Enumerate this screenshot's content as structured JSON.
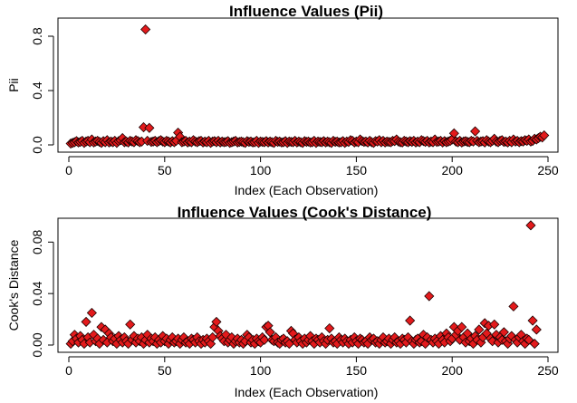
{
  "chart_data": [
    {
      "type": "scatter",
      "title": "Influence Values (Pii)",
      "xlabel": "Index (Each Observation)",
      "ylabel": "Pii",
      "xlim": [
        0,
        250
      ],
      "ylim": [
        0,
        0.9
      ],
      "xticks": [
        "0",
        "50",
        "100",
        "150",
        "200",
        "250"
      ],
      "yticks": [
        "0.0",
        "0.4",
        "0.8"
      ],
      "marker": "diamond",
      "marker_color": "#e31a1c",
      "x_start": 1,
      "values": [
        0.01,
        0.015,
        0.02,
        0.028,
        0.018,
        0.022,
        0.03,
        0.015,
        0.025,
        0.03,
        0.02,
        0.04,
        0.018,
        0.025,
        0.03,
        0.022,
        0.015,
        0.028,
        0.02,
        0.035,
        0.018,
        0.025,
        0.02,
        0.03,
        0.015,
        0.028,
        0.035,
        0.05,
        0.02,
        0.025,
        0.018,
        0.03,
        0.025,
        0.02,
        0.035,
        0.028,
        0.02,
        0.025,
        0.13,
        0.85,
        0.03,
        0.125,
        0.022,
        0.025,
        0.03,
        0.02,
        0.028,
        0.035,
        0.025,
        0.02,
        0.03,
        0.025,
        0.018,
        0.028,
        0.02,
        0.03,
        0.09,
        0.06,
        0.02,
        0.025,
        0.03,
        0.018,
        0.025,
        0.02,
        0.035,
        0.025,
        0.02,
        0.028,
        0.03,
        0.018,
        0.025,
        0.02,
        0.03,
        0.015,
        0.025,
        0.028,
        0.02,
        0.03,
        0.018,
        0.025,
        0.02,
        0.022,
        0.028,
        0.015,
        0.02,
        0.025,
        0.03,
        0.018,
        0.022,
        0.025,
        0.02,
        0.015,
        0.028,
        0.022,
        0.025,
        0.018,
        0.02,
        0.03,
        0.015,
        0.025,
        0.022,
        0.02,
        0.028,
        0.018,
        0.025,
        0.02,
        0.015,
        0.03,
        0.022,
        0.025,
        0.018,
        0.02,
        0.028,
        0.015,
        0.025,
        0.022,
        0.02,
        0.03,
        0.018,
        0.025,
        0.02,
        0.015,
        0.028,
        0.022,
        0.025,
        0.018,
        0.02,
        0.03,
        0.015,
        0.025,
        0.022,
        0.02,
        0.028,
        0.018,
        0.025,
        0.02,
        0.015,
        0.03,
        0.022,
        0.025,
        0.018,
        0.02,
        0.028,
        0.015,
        0.025,
        0.022,
        0.035,
        0.03,
        0.018,
        0.025,
        0.02,
        0.04,
        0.028,
        0.022,
        0.025,
        0.018,
        0.03,
        0.02,
        0.015,
        0.028,
        0.025,
        0.035,
        0.02,
        0.03,
        0.018,
        0.025,
        0.022,
        0.02,
        0.03,
        0.028,
        0.04,
        0.025,
        0.02,
        0.018,
        0.03,
        0.025,
        0.02,
        0.028,
        0.022,
        0.03,
        0.018,
        0.025,
        0.02,
        0.035,
        0.028,
        0.022,
        0.03,
        0.018,
        0.025,
        0.02,
        0.04,
        0.022,
        0.025,
        0.03,
        0.018,
        0.028,
        0.02,
        0.025,
        0.03,
        0.04,
        0.085,
        0.025,
        0.02,
        0.03,
        0.018,
        0.025,
        0.028,
        0.022,
        0.02,
        0.03,
        0.025,
        0.1,
        0.03,
        0.02,
        0.025,
        0.028,
        0.018,
        0.035,
        0.025,
        0.02,
        0.03,
        0.045,
        0.025,
        0.02,
        0.03,
        0.035,
        0.022,
        0.025,
        0.018,
        0.03,
        0.02,
        0.04,
        0.025,
        0.03,
        0.02,
        0.028,
        0.025,
        0.035,
        0.03,
        0.04,
        0.025,
        0.03,
        0.045,
        0.04,
        0.05,
        0.06,
        0.055,
        0.07
      ]
    },
    {
      "type": "scatter",
      "title": "Influence Values (Cook's Distance)",
      "xlabel": "Index (Each Observation)",
      "ylabel": "Cook's Distance",
      "xlim": [
        0,
        250
      ],
      "ylim": [
        0,
        0.095
      ],
      "xticks": [
        "0",
        "50",
        "100",
        "150",
        "200",
        "250"
      ],
      "yticks": [
        "0.00",
        "0.04",
        "0.08"
      ],
      "marker": "diamond",
      "marker_color": "#e31a1c",
      "x_start": 1,
      "values": [
        0.001,
        0.003,
        0.008,
        0.005,
        0.002,
        0.007,
        0.004,
        0.001,
        0.018,
        0.006,
        0.002,
        0.025,
        0.008,
        0.003,
        0.005,
        0.001,
        0.014,
        0.004,
        0.012,
        0.002,
        0.009,
        0.006,
        0.003,
        0.005,
        0.001,
        0.007,
        0.004,
        0.002,
        0.006,
        0.003,
        0.001,
        0.016,
        0.004,
        0.007,
        0.002,
        0.005,
        0.003,
        0.006,
        0.001,
        0.004,
        0.008,
        0.002,
        0.005,
        0.003,
        0.006,
        0.001,
        0.004,
        0.002,
        0.007,
        0.003,
        0.005,
        0.001,
        0.004,
        0.006,
        0.002,
        0.003,
        0.005,
        0.001,
        0.004,
        0.006,
        0.002,
        0.003,
        0.001,
        0.005,
        0.004,
        0.002,
        0.006,
        0.003,
        0.001,
        0.004,
        0.002,
        0.005,
        0.003,
        0.001,
        0.006,
        0.014,
        0.018,
        0.011,
        0.007,
        0.005,
        0.003,
        0.008,
        0.002,
        0.004,
        0.006,
        0.001,
        0.003,
        0.005,
        0.002,
        0.004,
        0.001,
        0.003,
        0.008,
        0.006,
        0.002,
        0.004,
        0.001,
        0.005,
        0.003,
        0.002,
        0.006,
        0.004,
        0.014,
        0.015,
        0.01,
        0.004,
        0.003,
        0.006,
        0.002,
        0.001,
        0.004,
        0.005,
        0.002,
        0.003,
        0.001,
        0.011,
        0.009,
        0.004,
        0.002,
        0.006,
        0.003,
        0.001,
        0.005,
        0.002,
        0.004,
        0.007,
        0.003,
        0.001,
        0.005,
        0.004,
        0.002,
        0.006,
        0.003,
        0.001,
        0.004,
        0.013,
        0.005,
        0.002,
        0.003,
        0.001,
        0.006,
        0.004,
        0.002,
        0.005,
        0.003,
        0.001,
        0.004,
        0.002,
        0.006,
        0.003,
        0.001,
        0.005,
        0.004,
        0.002,
        0.003,
        0.001,
        0.006,
        0.004,
        0.005,
        0.002,
        0.003,
        0.001,
        0.004,
        0.006,
        0.002,
        0.003,
        0.005,
        0.001,
        0.004,
        0.006,
        0.002,
        0.003,
        0.001,
        0.005,
        0.004,
        0.002,
        0.006,
        0.019,
        0.003,
        0.001,
        0.004,
        0.005,
        0.002,
        0.003,
        0.008,
        0.001,
        0.006,
        0.038,
        0.004,
        0.002,
        0.005,
        0.003,
        0.001,
        0.007,
        0.004,
        0.002,
        0.009,
        0.006,
        0.003,
        0.005,
        0.014,
        0.008,
        0.011,
        0.004,
        0.014,
        0.006,
        0.002,
        0.009,
        0.003,
        0.005,
        0.001,
        0.007,
        0.004,
        0.012,
        0.002,
        0.006,
        0.017,
        0.009,
        0.015,
        0.005,
        0.003,
        0.016,
        0.008,
        0.002,
        0.006,
        0.004,
        0.01,
        0.003,
        0.001,
        0.005,
        0.007,
        0.03,
        0.004,
        0.002,
        0.006,
        0.008,
        0.003,
        0.001,
        0.005,
        0.004,
        0.093,
        0.019,
        0.001,
        0.012
      ]
    }
  ]
}
